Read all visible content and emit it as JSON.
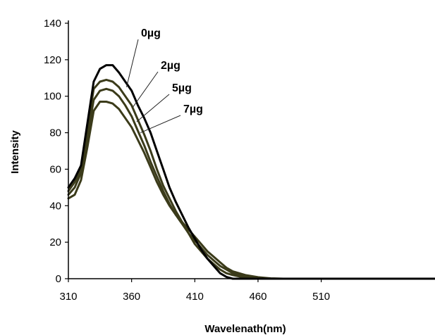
{
  "chart_data": {
    "type": "line",
    "title": "",
    "xlabel": "Wavelenath(nm)",
    "ylabel": "Intensity",
    "xlim": [
      310,
      600
    ],
    "ylim": [
      0,
      140
    ],
    "x_ticks": [
      310,
      360,
      410,
      460,
      510
    ],
    "y_ticks": [
      0,
      20,
      40,
      60,
      80,
      100,
      120,
      140
    ],
    "grid": false,
    "legend": "none",
    "colors": {
      "main": "#000000",
      "others": "#3b3b1a"
    },
    "series": [
      {
        "name": "0µg",
        "x": [
          310,
          315,
          320,
          325,
          330,
          335,
          340,
          345,
          350,
          355,
          360,
          365,
          370,
          375,
          380,
          385,
          390,
          395,
          400,
          405,
          410,
          415,
          420,
          425,
          430,
          435,
          440,
          450,
          460,
          470,
          480,
          500,
          550,
          600
        ],
        "values": [
          50,
          55,
          62,
          85,
          108,
          115,
          117,
          117,
          113,
          108,
          103,
          95,
          88,
          80,
          70,
          60,
          50,
          42,
          35,
          28,
          22,
          16,
          11,
          7,
          3,
          1,
          0,
          0,
          0,
          0,
          0,
          0,
          0,
          0
        ]
      },
      {
        "name": "2µg",
        "x": [
          310,
          315,
          320,
          325,
          330,
          335,
          340,
          345,
          350,
          355,
          360,
          365,
          370,
          375,
          380,
          385,
          390,
          395,
          400,
          405,
          410,
          415,
          420,
          425,
          430,
          435,
          440,
          450,
          460,
          470,
          480,
          500,
          550,
          600
        ],
        "values": [
          48,
          53,
          60,
          82,
          104,
          108,
          109,
          108,
          105,
          100,
          95,
          87,
          79,
          70,
          60,
          51,
          44,
          37,
          31,
          25,
          19,
          15,
          11,
          8,
          5,
          3,
          2,
          0.5,
          0,
          0,
          0,
          0,
          0,
          0
        ]
      },
      {
        "name": "5µg",
        "x": [
          310,
          315,
          320,
          325,
          330,
          335,
          340,
          345,
          350,
          355,
          360,
          365,
          370,
          375,
          380,
          385,
          390,
          395,
          400,
          405,
          410,
          415,
          420,
          425,
          430,
          435,
          440,
          450,
          460,
          470,
          480,
          500,
          550,
          600
        ],
        "values": [
          46,
          50,
          58,
          78,
          98,
          103,
          104,
          103,
          100,
          95,
          89,
          81,
          73,
          64,
          56,
          48,
          41,
          35,
          30,
          25,
          21,
          17,
          13,
          10,
          7,
          5,
          3,
          1.5,
          0.5,
          0,
          0,
          0,
          0,
          0
        ]
      },
      {
        "name": "7µg",
        "x": [
          310,
          315,
          320,
          325,
          330,
          335,
          340,
          345,
          350,
          355,
          360,
          365,
          370,
          375,
          380,
          385,
          390,
          395,
          400,
          405,
          410,
          415,
          420,
          425,
          430,
          435,
          440,
          450,
          460,
          470,
          480,
          500,
          550,
          600
        ],
        "values": [
          44,
          46,
          54,
          72,
          92,
          97,
          97,
          96,
          93,
          88,
          83,
          76,
          69,
          61,
          53,
          46,
          40,
          35,
          31,
          27,
          23,
          19,
          15,
          12,
          9,
          6,
          4,
          2,
          0.8,
          0.2,
          0,
          0,
          0,
          0
        ]
      }
    ],
    "annotations": [
      {
        "text": "0µg",
        "series": 0,
        "anchor_x": 356,
        "anchor_y": 105
      },
      {
        "text": "2µg",
        "series": 1,
        "anchor_x": 361,
        "anchor_y": 94
      },
      {
        "text": "5µg",
        "series": 2,
        "anchor_x": 364,
        "anchor_y": 86
      },
      {
        "text": "7µg",
        "series": 3,
        "anchor_x": 367,
        "anchor_y": 80
      }
    ]
  }
}
